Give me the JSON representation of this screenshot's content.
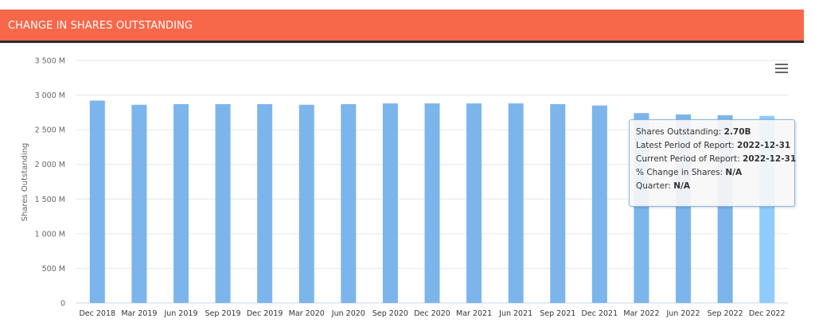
{
  "header": {
    "title": "CHANGE IN SHARES OUTSTANDING"
  },
  "colors": {
    "header_bg": "#f7674a",
    "bar": "#7cb5ec",
    "bar_hover": "#8fcbff",
    "grid": "#e6e6e6",
    "axis_text": "#666666"
  },
  "chart_data": {
    "type": "bar",
    "title": "",
    "xlabel": "",
    "ylabel": "Shares Outstanding",
    "ylim": [
      0,
      3500
    ],
    "y_ticks": [
      0,
      500,
      1000,
      1500,
      2000,
      2500,
      3000,
      3500
    ],
    "y_tick_labels": [
      "0",
      "500 M",
      "1 000 M",
      "1 500 M",
      "2 000 M",
      "2 500 M",
      "3 000 M",
      "3 500 M"
    ],
    "grid": true,
    "categories": [
      "Dec 2018",
      "Mar 2019",
      "Jun 2019",
      "Sep 2019",
      "Dec 2019",
      "Mar 2020",
      "Jun 2020",
      "Sep 2020",
      "Dec 2020",
      "Mar 2021",
      "Jun 2021",
      "Sep 2021",
      "Dec 2021",
      "Mar 2022",
      "Jun 2022",
      "Sep 2022",
      "Dec 2022"
    ],
    "values": [
      2920,
      2860,
      2870,
      2870,
      2870,
      2860,
      2870,
      2880,
      2880,
      2880,
      2880,
      2870,
      2850,
      2740,
      2720,
      2710,
      2700
    ],
    "highlighted_category": "Dec 2022"
  },
  "tooltip": {
    "line1_label": "Shares Outstanding: ",
    "line1_value": "2.70B",
    "line2_label": "Latest Period of Report: ",
    "line2_value": "2022-12-31",
    "line3_label": "Current Period of Report: ",
    "line3_value": "2022-12-31",
    "line4_label": "% Change in Shares: ",
    "line4_value": "N/A",
    "line5_label": "Quarter: ",
    "line5_value": "N/A"
  },
  "menu": {
    "icon": "hamburger-menu-icon"
  }
}
